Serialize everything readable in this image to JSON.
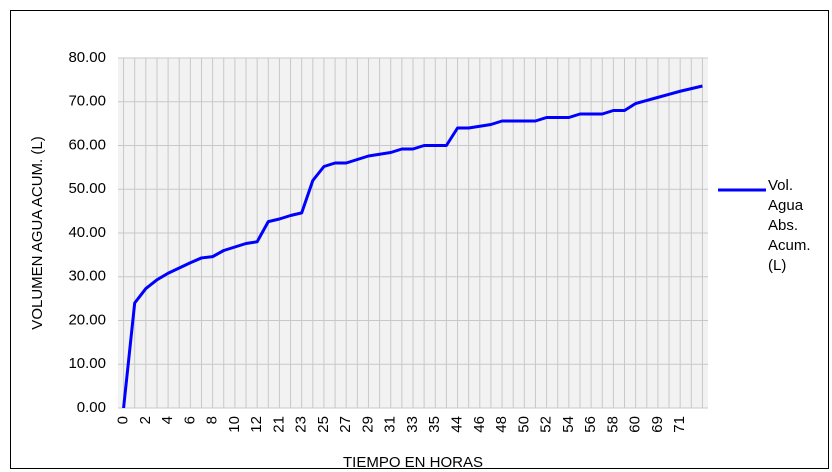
{
  "chart_data": {
    "type": "line",
    "x_label": "TIEMPO EN HORAS",
    "y_label": "VOLUMEN AGUA ACUM. (L)",
    "categories": [
      "0",
      null,
      "2",
      null,
      "4",
      null,
      "6",
      null,
      "8",
      null,
      "10",
      null,
      "12",
      null,
      "21",
      null,
      "23",
      null,
      "25",
      null,
      "27",
      null,
      "29",
      null,
      "31",
      null,
      "33",
      null,
      "35",
      null,
      "44",
      null,
      "46",
      null,
      "48",
      null,
      "50",
      null,
      "52",
      null,
      "54",
      null,
      "56",
      null,
      "58",
      null,
      "60",
      null,
      "69",
      null,
      "71",
      null,
      null
    ],
    "series": [
      {
        "name": "Vol. Agua Abs. Acum. (L)",
        "color": "#0000ff",
        "values": [
          0,
          24,
          27.3,
          29.3,
          30.8,
          32,
          33.2,
          34.3,
          34.6,
          36,
          36.8,
          37.6,
          38,
          42.6,
          43.2,
          44,
          44.6,
          52,
          55.2,
          56,
          56,
          56.8,
          57.6,
          58,
          58.4,
          59.2,
          59.2,
          60,
          60,
          60,
          64,
          64,
          64.4,
          64.8,
          65.6,
          65.6,
          65.6,
          65.6,
          66.4,
          66.4,
          66.4,
          67.2,
          67.2,
          67.2,
          68,
          68,
          69.6,
          70.3,
          71,
          71.7,
          72.4,
          73,
          73.6
        ]
      }
    ],
    "ylim": [
      0,
      80
    ],
    "yticks": [
      {
        "value": 0,
        "label": "0.00"
      },
      {
        "value": 10,
        "label": "10.00"
      },
      {
        "value": 20,
        "label": "20.00"
      },
      {
        "value": 30,
        "label": "30.00"
      },
      {
        "value": 40,
        "label": "40.00"
      },
      {
        "value": 50,
        "label": "50.00"
      },
      {
        "value": 60,
        "label": "60.00"
      },
      {
        "value": 70,
        "label": "70.00"
      },
      {
        "value": 80,
        "label": "80.00"
      }
    ],
    "grid": true,
    "legend": "right"
  }
}
